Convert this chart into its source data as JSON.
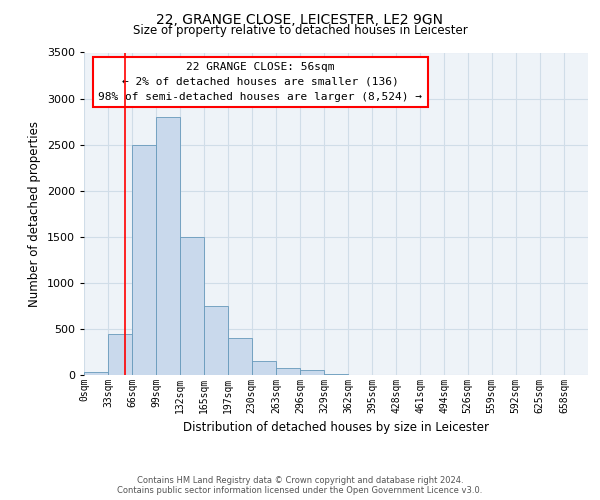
{
  "title1": "22, GRANGE CLOSE, LEICESTER, LE2 9GN",
  "title2": "Size of property relative to detached houses in Leicester",
  "xlabel": "Distribution of detached houses by size in Leicester",
  "ylabel": "Number of detached properties",
  "bin_labels": [
    "0sqm",
    "33sqm",
    "66sqm",
    "99sqm",
    "132sqm",
    "165sqm",
    "197sqm",
    "230sqm",
    "263sqm",
    "296sqm",
    "329sqm",
    "362sqm",
    "395sqm",
    "428sqm",
    "461sqm",
    "494sqm",
    "526sqm",
    "559sqm",
    "592sqm",
    "625sqm",
    "658sqm"
  ],
  "bin_edges": [
    0,
    33,
    66,
    99,
    132,
    165,
    197,
    230,
    263,
    296,
    329,
    362,
    395,
    428,
    461,
    494,
    526,
    559,
    592,
    625,
    658
  ],
  "bar_heights": [
    30,
    450,
    2500,
    2800,
    1500,
    750,
    400,
    150,
    75,
    50,
    15,
    5,
    2,
    0,
    0,
    0,
    0,
    0,
    0,
    0
  ],
  "bar_color": "#c9d9ec",
  "bar_edge_color": "#6699bb",
  "vline_x": 56,
  "vline_color": "red",
  "ylim": [
    0,
    3500
  ],
  "yticks": [
    0,
    500,
    1000,
    1500,
    2000,
    2500,
    3000,
    3500
  ],
  "annotation_title": "22 GRANGE CLOSE: 56sqm",
  "annotation_line1": "← 2% of detached houses are smaller (136)",
  "annotation_line2": "98% of semi-detached houses are larger (8,524) →",
  "annotation_box_color": "white",
  "annotation_box_edgecolor": "red",
  "footer1": "Contains HM Land Registry data © Crown copyright and database right 2024.",
  "footer2": "Contains public sector information licensed under the Open Government Licence v3.0.",
  "grid_color": "#d0dde8",
  "bg_color": "#eef3f8"
}
